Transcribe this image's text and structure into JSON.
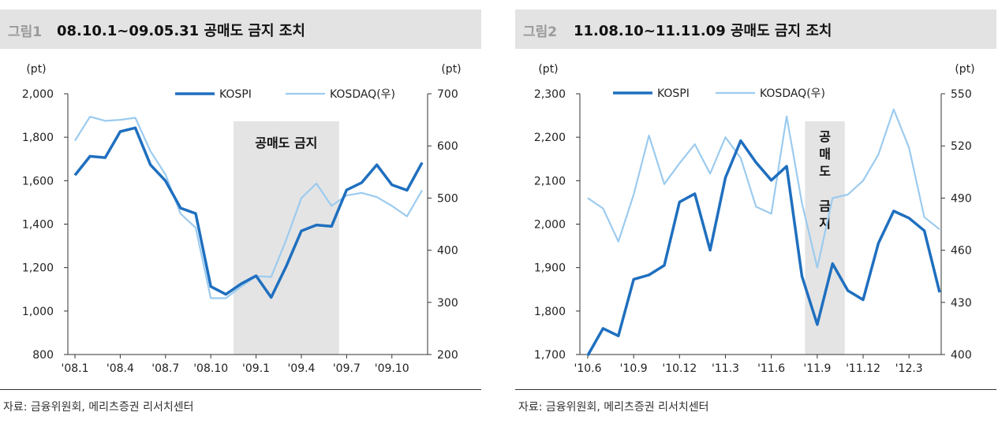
{
  "figure1": {
    "label": "그림1",
    "title": "08.10.1~09.05.31 공매도 금지 조치",
    "source": "자료: 금융위원회, 메리츠증권 리서치센터",
    "chart_data": {
      "type": "line",
      "left_unit": "(pt)",
      "right_unit": "(pt)",
      "left_ylim": [
        800,
        2000
      ],
      "right_ylim": [
        200,
        700
      ],
      "left_ticks": [
        "2,000",
        "1,800",
        "1,600",
        "1,400",
        "1,200",
        "1,000",
        "800"
      ],
      "right_ticks": [
        "700",
        "600",
        "500",
        "400",
        "300",
        "200"
      ],
      "x_tick_labels": [
        "'08.1",
        "'08.4",
        "'08.7",
        "'08.10",
        "'09.1",
        "'09.4",
        "'09.7",
        "'09.10"
      ],
      "x_tick_positions": [
        0,
        3,
        6,
        9,
        12,
        15,
        18,
        21
      ],
      "shaded_range": [
        10.5,
        17.5
      ],
      "shaded_label": "공매도 금지",
      "series": [
        {
          "name": "KOSPI",
          "axis": "left",
          "color": "#1f6fbf",
          "values": [
            1625,
            1712,
            1706,
            1826,
            1843,
            1673,
            1599,
            1474,
            1449,
            1113,
            1077,
            1125,
            1162,
            1063,
            1206,
            1369,
            1396,
            1390,
            1557,
            1591,
            1673,
            1581,
            1556,
            1683
          ]
        },
        {
          "name": "KOSDAQ(우)",
          "axis": "right",
          "color": "#9ccbef",
          "values": [
            610,
            656,
            648,
            650,
            654,
            590,
            545,
            470,
            443,
            308,
            308,
            330,
            350,
            349,
            420,
            500,
            528,
            485,
            505,
            510,
            502,
            485,
            465,
            515
          ]
        }
      ]
    }
  },
  "figure2": {
    "label": "그림2",
    "title": "11.08.10~11.11.09 공매도 금지 조치",
    "source": "자료: 금융위원회, 메리츠증권 리서치센터",
    "chart_data": {
      "type": "line",
      "left_unit": "(pt)",
      "right_unit": "(pt)",
      "left_ylim": [
        1700,
        2300
      ],
      "right_ylim": [
        400,
        550
      ],
      "left_ticks": [
        "2,300",
        "2,200",
        "2,100",
        "2,000",
        "1,900",
        "1,800",
        "1,700"
      ],
      "right_ticks": [
        "550",
        "520",
        "490",
        "460",
        "430",
        "400"
      ],
      "x_tick_labels": [
        "'10.6",
        "'10.9",
        "'10.12",
        "'11.3",
        "'11.6",
        "'11.9",
        "'11.12",
        "'12.3"
      ],
      "x_tick_positions": [
        0,
        3,
        6,
        9,
        12,
        15,
        18,
        21
      ],
      "shaded_range": [
        14.2,
        16.8
      ],
      "shaded_label": "공매도 금지",
      "shaded_label_lines": [
        "공",
        "매",
        "도",
        "",
        "금",
        "지"
      ],
      "series": [
        {
          "name": "KOSPI",
          "axis": "left",
          "color": "#1f6fbf",
          "values": [
            1698,
            1760,
            1743,
            1873,
            1883,
            1905,
            2051,
            2070,
            1940,
            2107,
            2192,
            2142,
            2101,
            2133,
            1880,
            1769,
            1909,
            1847,
            1826,
            1956,
            2030,
            2014,
            1985,
            1843
          ]
        },
        {
          "name": "KOSDAQ(우)",
          "axis": "right",
          "color": "#9ccbef",
          "values": [
            490,
            484,
            465,
            492,
            526,
            498,
            510,
            521,
            504,
            525,
            513,
            485,
            481,
            537,
            487,
            450,
            490,
            492,
            500,
            515,
            541,
            519,
            479,
            472
          ]
        }
      ]
    }
  }
}
